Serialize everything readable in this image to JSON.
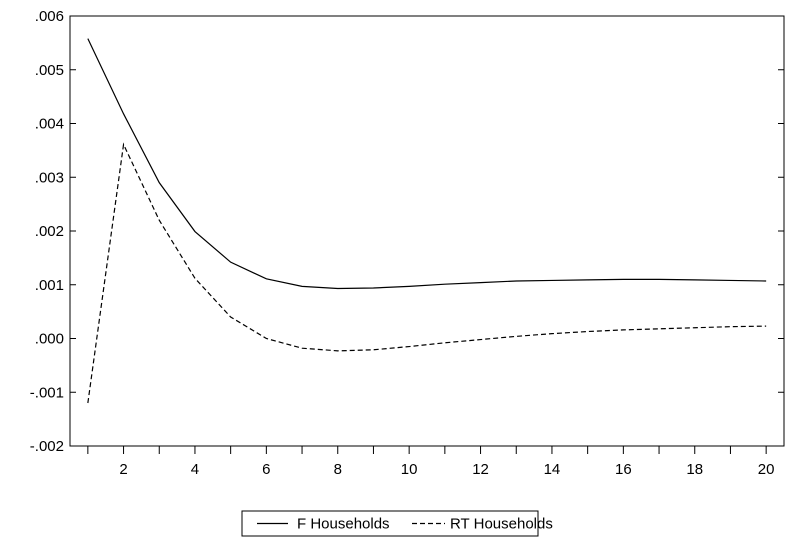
{
  "chart_data": {
    "type": "line",
    "title": "",
    "xlabel": "",
    "ylabel": "",
    "x": [
      1,
      2,
      3,
      4,
      5,
      6,
      7,
      8,
      9,
      10,
      11,
      12,
      13,
      14,
      15,
      16,
      17,
      18,
      19,
      20
    ],
    "xlim": [
      0.5,
      20.5
    ],
    "ylim": [
      -0.002,
      0.006
    ],
    "x_ticks": [
      2,
      4,
      6,
      8,
      10,
      12,
      14,
      16,
      18,
      20
    ],
    "x_tick_labels": [
      "2",
      "4",
      "6",
      "8",
      "10",
      "12",
      "14",
      "16",
      "18",
      "20"
    ],
    "y_ticks": [
      -0.002,
      -0.001,
      0.0,
      0.001,
      0.002,
      0.003,
      0.004,
      0.005,
      0.006
    ],
    "y_tick_labels": [
      "-.002",
      "-.001",
      ".000",
      ".001",
      ".002",
      ".003",
      ".004",
      ".005",
      ".006"
    ],
    "grid": false,
    "legend_position": "bottom-center",
    "series": [
      {
        "name": "F Households",
        "style": "solid",
        "color": "#000000",
        "values": [
          0.00558,
          0.00418,
          0.0029,
          0.00199,
          0.00142,
          0.00111,
          0.00097,
          0.00093,
          0.00094,
          0.00097,
          0.00101,
          0.00104,
          0.00107,
          0.00108,
          0.00109,
          0.0011,
          0.0011,
          0.00109,
          0.00108,
          0.00107
        ]
      },
      {
        "name": "RT Households",
        "style": "dashed",
        "color": "#000000",
        "values": [
          -0.0012,
          0.00361,
          0.0022,
          0.00112,
          0.0004,
          0.0,
          -0.00018,
          -0.00023,
          -0.00021,
          -0.00015,
          -8e-05,
          -2e-05,
          4e-05,
          9e-05,
          0.00013,
          0.00016,
          0.00018,
          0.0002,
          0.00022,
          0.00023
        ]
      }
    ]
  }
}
